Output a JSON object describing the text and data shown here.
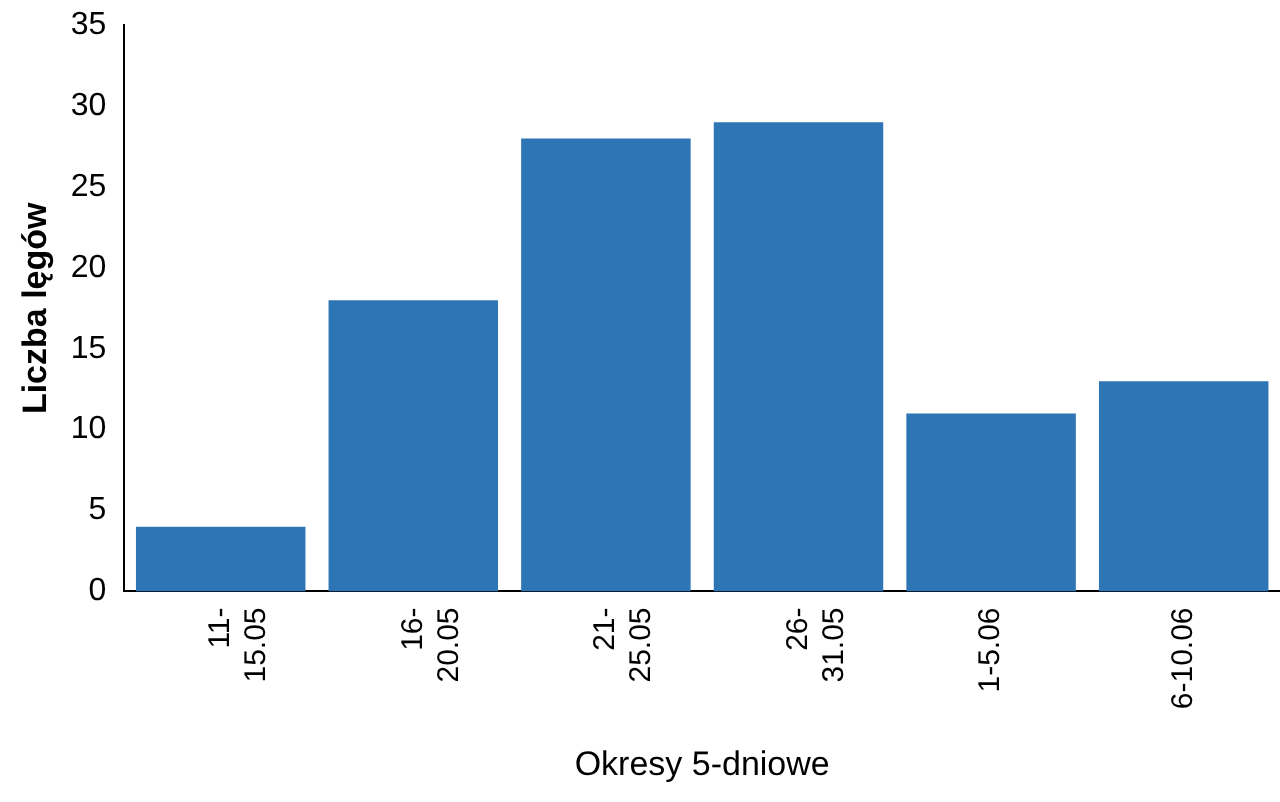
{
  "chart_data": {
    "type": "bar",
    "xlabel": "Okresy 5-dniowe",
    "ylabel": "Liczba lęgów",
    "categories": [
      "11-\n15.05",
      "16-\n20.05",
      "21-\n25.05",
      "26-\n31.05",
      "1-5.06",
      "6-10.06"
    ],
    "values": [
      4,
      18,
      28,
      29,
      11,
      13
    ],
    "color": "#2e75b6",
    "ylim": [
      0,
      35
    ],
    "yticks": [
      0,
      5,
      10,
      15,
      20,
      25,
      30,
      35
    ],
    "grid": false,
    "legend": false
  }
}
